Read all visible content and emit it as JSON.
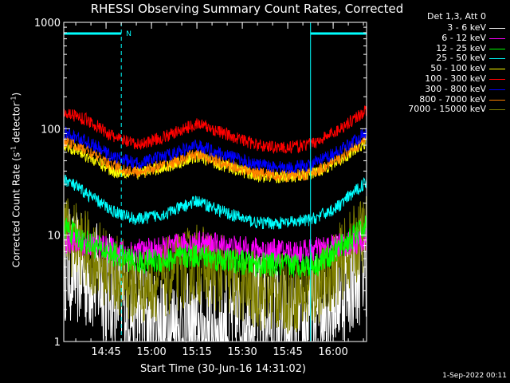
{
  "chart_data": {
    "type": "line",
    "title": "RHESSI Observing Summary Count Rates, Corrected",
    "xlabel": "Start Time (30-Jun-16 14:31:02)",
    "ylabel_parts": {
      "prefix": "Corrected Count Rate (s",
      "sup1": "-1",
      "mid": " detector",
      "sup2": "-1",
      "suffix": ")"
    },
    "y_scale": "log",
    "ylim": [
      1,
      1000
    ],
    "y_ticks": [
      {
        "value": 1,
        "label": "1"
      },
      {
        "value": 10,
        "label": "10"
      },
      {
        "value": 100,
        "label": "100"
      },
      {
        "value": 1000,
        "label": "1000"
      }
    ],
    "x_range_minutes": [
      0,
      100
    ],
    "x_ticks": [
      {
        "minutes": 13.97,
        "label": "14:45"
      },
      {
        "minutes": 28.97,
        "label": "15:00"
      },
      {
        "minutes": 43.97,
        "label": "15:15"
      },
      {
        "minutes": 58.97,
        "label": "15:30"
      },
      {
        "minutes": 73.97,
        "label": "15:45"
      },
      {
        "minutes": 88.97,
        "label": "16:00"
      }
    ],
    "legend_header": "Det 1,3, Att 0",
    "legend_placement": "outside-right",
    "annotations": {
      "night_label": "N",
      "night_intervals_minutes": [
        [
          0,
          19
        ],
        [
          81.5,
          100
        ]
      ]
    },
    "series": [
      {
        "name": "3 - 6 keV",
        "color": "#ffffff",
        "x_minutes": [
          0,
          10,
          19,
          30,
          44,
          55,
          66,
          72,
          78,
          84,
          95,
          100
        ],
        "values": [
          5.5,
          4,
          2.5,
          1.5,
          1.2,
          1.5,
          2,
          1.5,
          1.2,
          2,
          4,
          6
        ]
      },
      {
        "name": "6 - 12 keV",
        "color": "#ff00ff",
        "x_minutes": [
          0,
          10,
          20,
          30,
          44,
          58,
          70,
          80,
          90,
          100
        ],
        "values": [
          9,
          8,
          7,
          7.2,
          8.5,
          7.5,
          7,
          7,
          8,
          9
        ]
      },
      {
        "name": "12 - 25 keV",
        "color": "#00ff00",
        "x_minutes": [
          0,
          6,
          14,
          24,
          34,
          44,
          54,
          64,
          74,
          84,
          92,
          100
        ],
        "values": [
          12,
          9,
          7,
          5.6,
          5.8,
          6.5,
          5.8,
          5.3,
          5.2,
          5.4,
          8,
          12
        ]
      },
      {
        "name": "25 - 50 keV",
        "color": "#00ffff",
        "x_minutes": [
          0,
          8,
          16,
          24,
          34,
          44,
          54,
          64,
          74,
          82,
          90,
          100
        ],
        "values": [
          34,
          24,
          17,
          14,
          16,
          21,
          16,
          13,
          13,
          14,
          18,
          32
        ]
      },
      {
        "name": "50 - 100 keV",
        "color": "#ffff00",
        "x_minutes": [
          0,
          8,
          16,
          24,
          34,
          44,
          54,
          64,
          74,
          82,
          90,
          100
        ],
        "values": [
          72,
          55,
          40,
          38,
          44,
          55,
          44,
          36,
          35,
          38,
          48,
          75
        ]
      },
      {
        "name": "100 - 300 keV",
        "color": "#ff0000",
        "x_minutes": [
          0,
          8,
          16,
          24,
          34,
          44,
          54,
          64,
          74,
          82,
          90,
          100
        ],
        "values": [
          145,
          120,
          85,
          70,
          85,
          112,
          88,
          70,
          66,
          72,
          95,
          150
        ]
      },
      {
        "name": "300 - 800 keV",
        "color": "#0000ff",
        "x_minutes": [
          0,
          8,
          16,
          24,
          34,
          44,
          54,
          64,
          74,
          82,
          90,
          100
        ],
        "values": [
          92,
          75,
          55,
          47,
          56,
          70,
          56,
          46,
          43,
          46,
          60,
          92
        ]
      },
      {
        "name": "800 - 7000 keV",
        "color": "#ff8000",
        "x_minutes": [
          0,
          8,
          16,
          24,
          34,
          44,
          54,
          64,
          74,
          82,
          90,
          100
        ],
        "values": [
          78,
          62,
          45,
          39,
          46,
          58,
          46,
          38,
          36,
          38,
          50,
          80
        ]
      },
      {
        "name": "7000 - 15000 keV",
        "color": "#808000",
        "x_minutes": [
          0,
          8,
          16,
          24,
          34,
          44,
          54,
          64,
          74,
          82,
          90,
          100
        ],
        "values": [
          11,
          7,
          4.5,
          3.3,
          4,
          5.5,
          4,
          3,
          2.8,
          3,
          5,
          11
        ]
      }
    ]
  },
  "footer": {
    "timestamp": "1-Sep-2022 00:11"
  }
}
